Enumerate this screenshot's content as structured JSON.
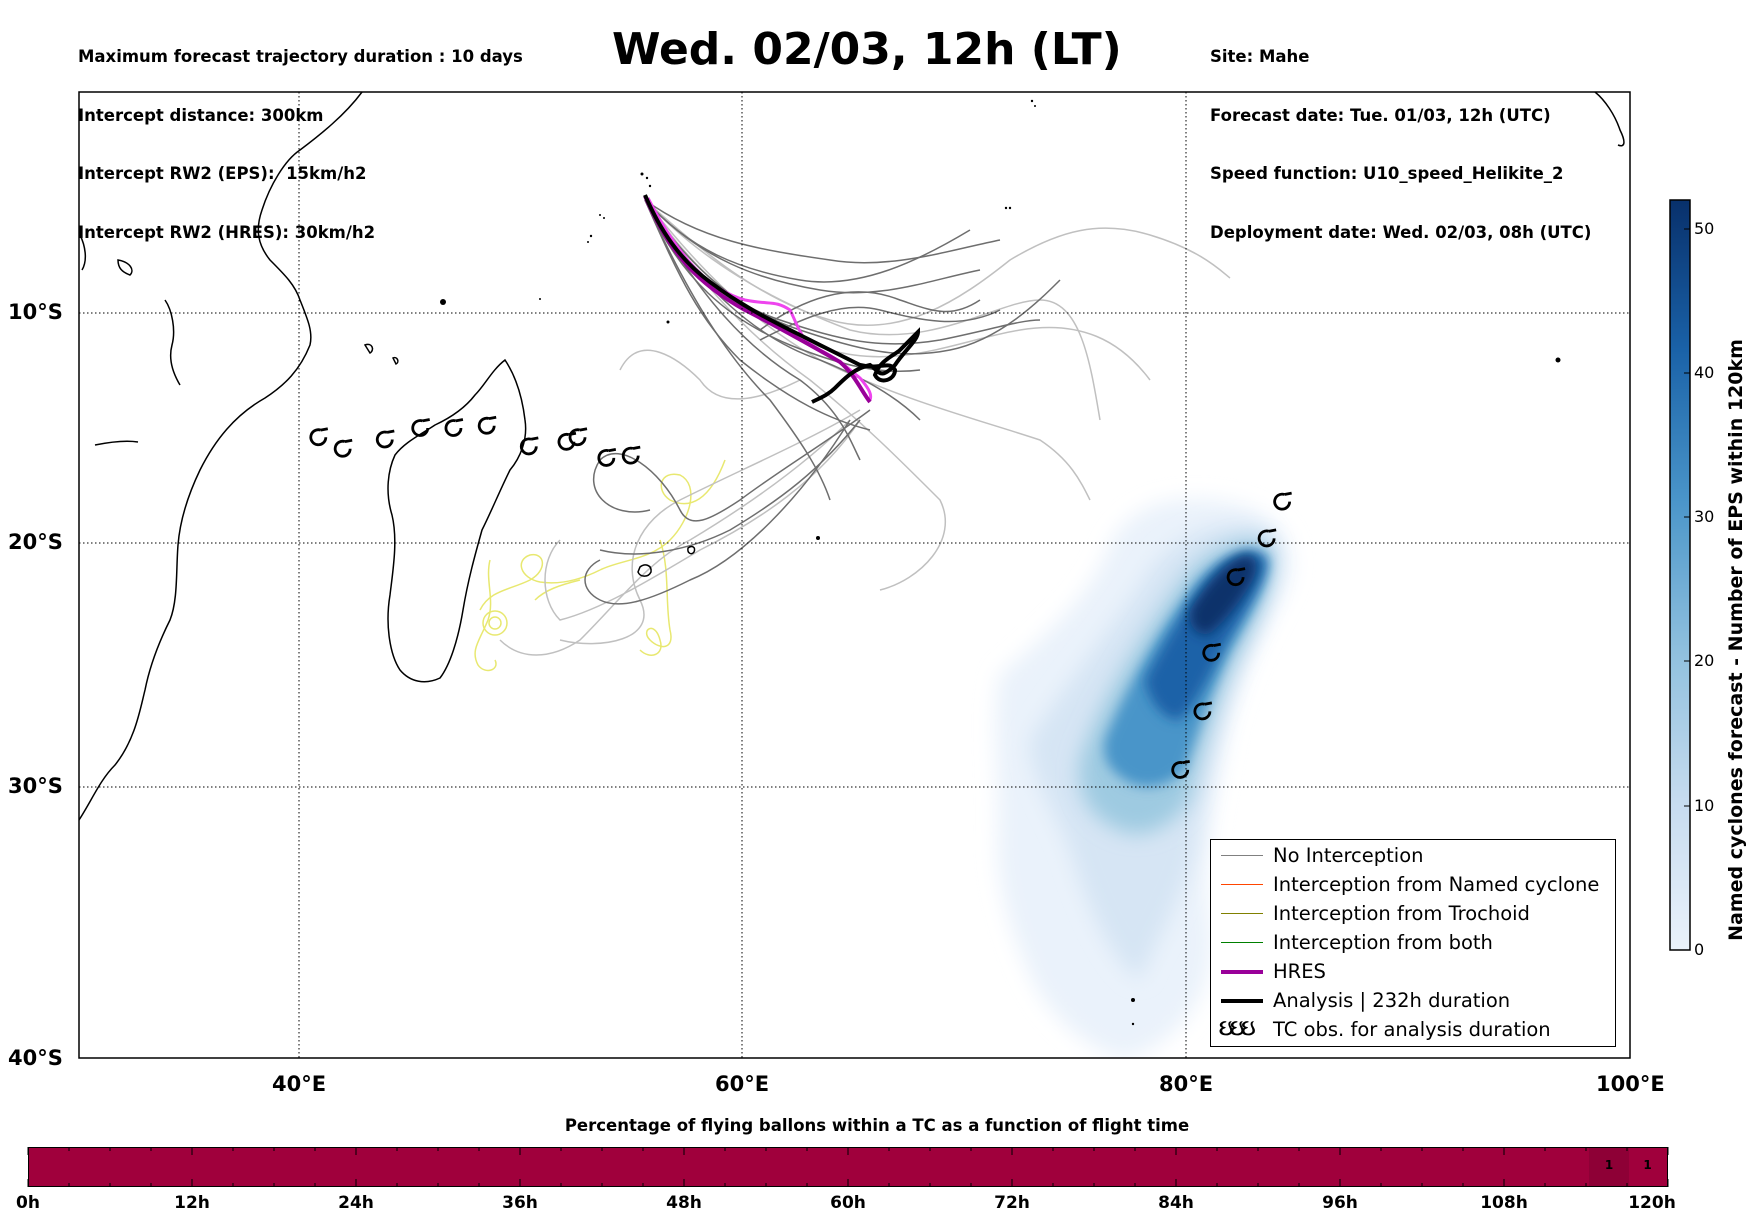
{
  "header": {
    "left_lines": [
      "Maximum forecast trajectory duration : 10 days",
      "Intercept distance: 300km",
      "Intercept RW2 (EPS):  15km/h2",
      "Intercept RW2 (HRES): 30km/h2"
    ],
    "title": "Wed. 02/03, 12h (LT)",
    "right_lines": [
      "Site: Mahe",
      "Forecast date: Tue. 01/03, 12h (UTC)",
      "Speed function: U10_speed_Helikite_2",
      "Deployment date: Wed. 02/03, 08h (UTC)"
    ]
  },
  "map": {
    "lat_labels": [
      "10°S",
      "20°S",
      "30°S",
      "40°S"
    ],
    "lon_labels": [
      "40°E",
      "60°E",
      "80°E",
      "100°E"
    ],
    "lon_range": [
      30,
      100
    ],
    "lat_range": [
      -40,
      -0.5
    ],
    "gridlines": true,
    "colors": {
      "no_interception": "#808080",
      "named_cyclone": "#ff4500",
      "trochoid": "#808000",
      "both": "#008000",
      "hres": "#990099",
      "analysis": "#000000",
      "hres_member_pink": "#ee44ee",
      "trochoid_yellow": "#e8e870"
    },
    "site_position_lonlat": [
      55.5,
      -4.6
    ],
    "tc_observation_symbol": "cyclone-icon",
    "tc_observations_lonlat": [
      [
        40.8,
        -15.4
      ],
      [
        41.9,
        -15.9
      ],
      [
        43.8,
        -15.5
      ],
      [
        45.4,
        -15.0
      ],
      [
        46.9,
        -15.0
      ],
      [
        48.4,
        -14.9
      ],
      [
        50.3,
        -15.8
      ],
      [
        52.0,
        -15.6
      ],
      [
        52.5,
        -15.4
      ],
      [
        53.8,
        -16.3
      ],
      [
        54.9,
        -16.2
      ],
      [
        79.7,
        -29.3
      ],
      [
        80.7,
        -26.9
      ],
      [
        81.1,
        -24.5
      ],
      [
        82.2,
        -21.4
      ],
      [
        83.6,
        -19.8
      ],
      [
        84.3,
        -18.2
      ]
    ]
  },
  "colorbar": {
    "label": "Named cyclones forecast - Number of EPS within 120km",
    "ticks": [
      "0",
      "10",
      "20",
      "30",
      "40",
      "50"
    ],
    "range": [
      0,
      52
    ]
  },
  "legend": {
    "items": [
      {
        "label": "No Interception",
        "color": "#808080",
        "width": 1.5
      },
      {
        "label": "Interception from Named cyclone",
        "color": "#ff4500",
        "width": 1.5
      },
      {
        "label": "Interception from Trochoid",
        "color": "#808000",
        "width": 1.5
      },
      {
        "label": "Interception from both",
        "color": "#008000",
        "width": 1.5
      },
      {
        "label": "HRES",
        "color": "#990099",
        "width": 4
      },
      {
        "label": "Analysis | 232h duration",
        "color": "#000000",
        "width": 4
      },
      {
        "label": "TC obs. for analysis duration",
        "symbol": "ઇઇઇ"
      }
    ]
  },
  "bottom_bar": {
    "title": "Percentage of flying ballons within a TC as a function of flight time",
    "time_ticks": [
      "0h",
      "12h",
      "24h",
      "36h",
      "48h",
      "60h",
      "72h",
      "84h",
      "96h",
      "108h",
      "120h"
    ],
    "color": "#a0003c",
    "highlight_cells": [
      {
        "hour_start": 114,
        "hour_end": 117,
        "label": "1"
      },
      {
        "hour_start": 117,
        "hour_end": 120,
        "label": "1"
      }
    ]
  }
}
